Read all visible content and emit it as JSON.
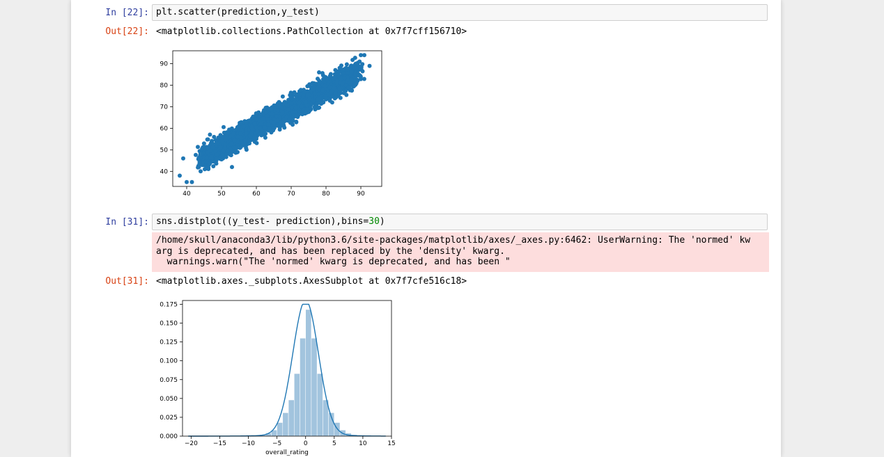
{
  "cells": {
    "c22": {
      "in_prompt": "In [22]:",
      "code": "plt.scatter(prediction,y_test)",
      "out_prompt": "Out[22]:",
      "out_text": "<matplotlib.collections.PathCollection at 0x7f7cff156710>"
    },
    "c31": {
      "in_prompt": "In [31]:",
      "code_prefix": "sns.distplot((y_test- prediction),bins=",
      "code_num": "30",
      "code_suffix": ")",
      "stderr_line1": "/home/skull/anaconda3/lib/python3.6/site-packages/matplotlib/axes/_axes.py:6462: UserWarning: The 'normed' kw",
      "stderr_line2": "arg is deprecated, and has been replaced by the 'density' kwarg.",
      "stderr_line3": "  warnings.warn(\"The 'normed' kwarg is deprecated, and has been \"",
      "out_prompt": "Out[31]:",
      "out_text": "<matplotlib.axes._subplots.AxesSubplot at 0x7f7cfe516c18>"
    }
  },
  "colors": {
    "scatter_point": "#1f77b4",
    "hist_bar": "#a2c4de",
    "kde_line": "#1f77b4"
  },
  "chart_data": [
    {
      "type": "scatter",
      "xlim": [
        36,
        96
      ],
      "ylim": [
        33,
        96
      ],
      "xticks": [
        40,
        50,
        60,
        70,
        80,
        90
      ],
      "yticks": [
        40,
        50,
        60,
        70,
        80,
        90
      ],
      "xlabel": "",
      "ylabel": "",
      "title": "",
      "grid": false,
      "trend": {
        "slope": 0.88,
        "intercept": 7.5,
        "x_range": [
          45,
          89
        ]
      },
      "outliers": [
        [
          38,
          38
        ],
        [
          39,
          46
        ],
        [
          40,
          35
        ],
        [
          41.5,
          35
        ],
        [
          43.5,
          42
        ],
        [
          44,
          40
        ],
        [
          46,
          51
        ],
        [
          92.5,
          89
        ],
        [
          90,
          94
        ],
        [
          91,
          94
        ],
        [
          53,
          42
        ],
        [
          78,
          86
        ],
        [
          58,
          53
        ]
      ]
    },
    {
      "type": "bar",
      "xlabel": "overall_rating",
      "ylabel": "",
      "title": "",
      "xlim": [
        -21.5,
        15
      ],
      "ylim": [
        0,
        0.18
      ],
      "xticks": [
        -20,
        -15,
        -10,
        -5,
        0,
        5,
        10,
        15
      ],
      "yticks": [
        0.0,
        0.025,
        0.05,
        0.075,
        0.1,
        0.125,
        0.15,
        0.175
      ],
      "ytick_labels": [
        "0.000",
        "0.025",
        "0.050",
        "0.075",
        "0.100",
        "0.125",
        "0.150",
        "0.175"
      ],
      "bins": [
        {
          "x0": -9.0,
          "x1": -8.0,
          "h": 0.001
        },
        {
          "x0": -8.0,
          "x1": -7.0,
          "h": 0.002
        },
        {
          "x0": -7.0,
          "x1": -6.0,
          "h": 0.004
        },
        {
          "x0": -6.0,
          "x1": -5.0,
          "h": 0.008
        },
        {
          "x0": -5.0,
          "x1": -4.0,
          "h": 0.018
        },
        {
          "x0": -4.0,
          "x1": -3.0,
          "h": 0.031
        },
        {
          "x0": -3.0,
          "x1": -2.0,
          "h": 0.048
        },
        {
          "x0": -2.0,
          "x1": -1.0,
          "h": 0.083
        },
        {
          "x0": -1.0,
          "x1": 0.0,
          "h": 0.13
        },
        {
          "x0": 0.0,
          "x1": 1.0,
          "h": 0.168
        },
        {
          "x0": 1.0,
          "x1": 2.0,
          "h": 0.13
        },
        {
          "x0": 2.0,
          "x1": 3.0,
          "h": 0.083
        },
        {
          "x0": 3.0,
          "x1": 4.0,
          "h": 0.048
        },
        {
          "x0": 4.0,
          "x1": 5.0,
          "h": 0.031
        },
        {
          "x0": 5.0,
          "x1": 6.0,
          "h": 0.018
        },
        {
          "x0": 6.0,
          "x1": 7.0,
          "h": 0.008
        },
        {
          "x0": 7.0,
          "x1": 8.0,
          "h": 0.004
        },
        {
          "x0": 8.0,
          "x1": 9.0,
          "h": 0.002
        }
      ],
      "kde": {
        "mu": 0.0,
        "sigma": 2.25,
        "peak": 0.175
      }
    }
  ]
}
